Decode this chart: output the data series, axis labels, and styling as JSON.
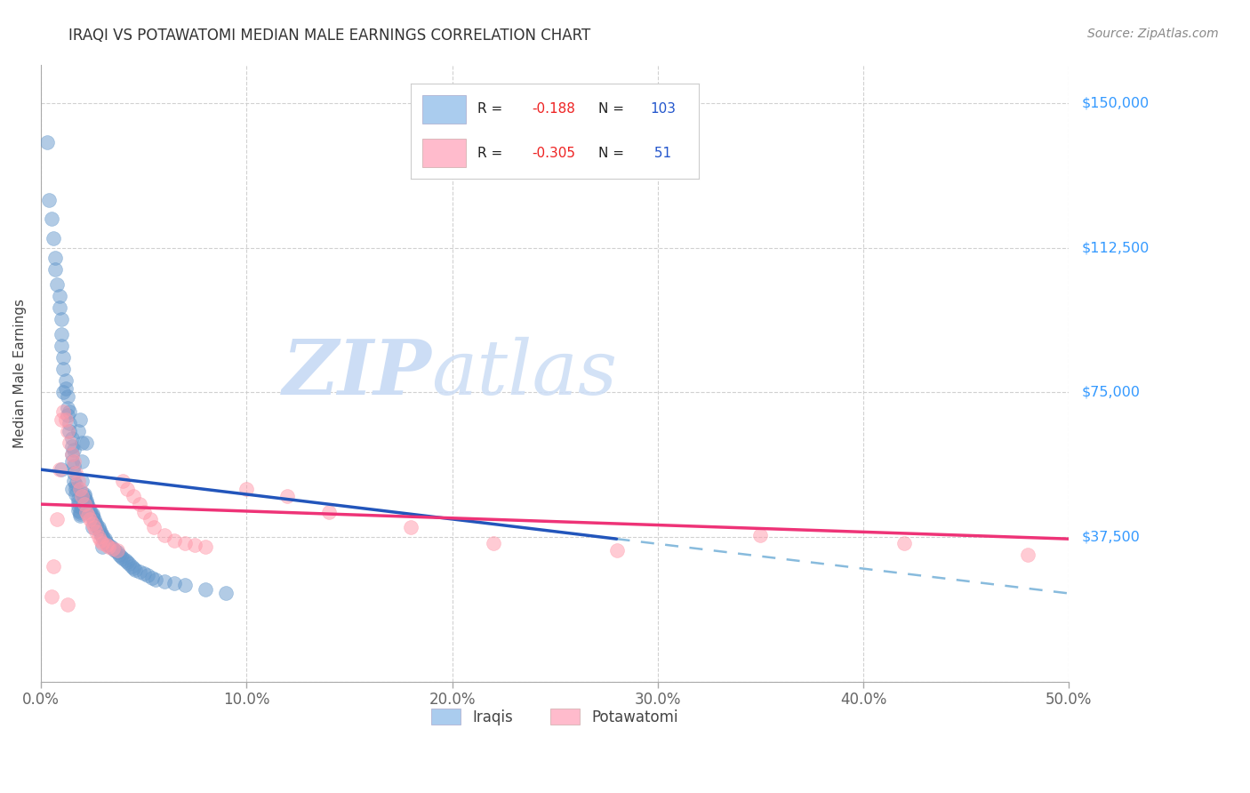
{
  "title": "IRAQI VS POTAWATOMI MEDIAN MALE EARNINGS CORRELATION CHART",
  "source": "Source: ZipAtlas.com",
  "ylabel": "Median Male Earnings",
  "yticks": [
    0,
    37500,
    75000,
    112500,
    150000
  ],
  "ytick_labels": [
    "",
    "$37,500",
    "$75,000",
    "$112,500",
    "$150,000"
  ],
  "xmin": 0.0,
  "xmax": 0.5,
  "ymin": 10000,
  "ymax": 160000,
  "iraqis_color": "#6699cc",
  "potawatomi_color": "#ff99aa",
  "iraqis_legend_color": "#aaccee",
  "potawatomi_legend_color": "#ffbbcc",
  "regression_blue": "#2255bb",
  "regression_pink": "#ee3377",
  "regression_dashed_color": "#88bbdd",
  "watermark_zip_color": "#ccddf5",
  "watermark_atlas_color": "#ccddf5",
  "iraqis_x": [
    0.003,
    0.004,
    0.005,
    0.006,
    0.007,
    0.007,
    0.008,
    0.009,
    0.009,
    0.01,
    0.01,
    0.01,
    0.011,
    0.011,
    0.012,
    0.012,
    0.013,
    0.013,
    0.013,
    0.014,
    0.014,
    0.015,
    0.015,
    0.015,
    0.015,
    0.016,
    0.016,
    0.016,
    0.017,
    0.017,
    0.017,
    0.018,
    0.018,
    0.018,
    0.018,
    0.019,
    0.019,
    0.019,
    0.02,
    0.02,
    0.02,
    0.02,
    0.021,
    0.021,
    0.021,
    0.022,
    0.022,
    0.022,
    0.023,
    0.023,
    0.024,
    0.024,
    0.025,
    0.025,
    0.025,
    0.026,
    0.026,
    0.027,
    0.027,
    0.028,
    0.028,
    0.029,
    0.029,
    0.03,
    0.03,
    0.031,
    0.031,
    0.032,
    0.033,
    0.034,
    0.035,
    0.036,
    0.037,
    0.038,
    0.039,
    0.04,
    0.041,
    0.042,
    0.043,
    0.044,
    0.045,
    0.046,
    0.048,
    0.05,
    0.052,
    0.054,
    0.056,
    0.06,
    0.065,
    0.07,
    0.08,
    0.09,
    0.01,
    0.015,
    0.02,
    0.025,
    0.03,
    0.014,
    0.018,
    0.016,
    0.011,
    0.019,
    0.022
  ],
  "iraqis_y": [
    140000,
    125000,
    120000,
    115000,
    110000,
    107000,
    103000,
    100000,
    97000,
    94000,
    90000,
    87000,
    84000,
    81000,
    78000,
    76000,
    74000,
    71000,
    69000,
    67000,
    65000,
    63000,
    61000,
    59000,
    57000,
    56000,
    54000,
    52000,
    51000,
    50000,
    48500,
    47500,
    46500,
    45500,
    44500,
    44000,
    43500,
    43000,
    62000,
    57000,
    52000,
    49000,
    48500,
    48000,
    47500,
    47000,
    46500,
    46000,
    45500,
    45000,
    44500,
    44000,
    43500,
    43000,
    42500,
    42000,
    41500,
    41000,
    40500,
    40000,
    39500,
    39000,
    38500,
    38000,
    37500,
    37000,
    36500,
    36000,
    35500,
    35000,
    34500,
    34000,
    33500,
    33000,
    32500,
    32000,
    31500,
    31000,
    30500,
    30000,
    29500,
    29000,
    28500,
    28000,
    27500,
    27000,
    26500,
    26000,
    25500,
    25000,
    24000,
    23000,
    55000,
    50000,
    45000,
    40000,
    35000,
    70000,
    65000,
    60000,
    75000,
    68000,
    62000
  ],
  "potawatomi_x": [
    0.005,
    0.006,
    0.008,
    0.009,
    0.01,
    0.011,
    0.012,
    0.013,
    0.014,
    0.015,
    0.016,
    0.017,
    0.018,
    0.019,
    0.02,
    0.021,
    0.022,
    0.023,
    0.024,
    0.025,
    0.026,
    0.027,
    0.028,
    0.029,
    0.03,
    0.032,
    0.033,
    0.035,
    0.037,
    0.04,
    0.042,
    0.045,
    0.048,
    0.05,
    0.053,
    0.055,
    0.06,
    0.065,
    0.07,
    0.075,
    0.08,
    0.1,
    0.12,
    0.14,
    0.18,
    0.22,
    0.28,
    0.35,
    0.42,
    0.48,
    0.013
  ],
  "potawatomi_y": [
    22000,
    30000,
    42000,
    55000,
    68000,
    70000,
    68000,
    65000,
    62000,
    59000,
    57000,
    54000,
    52000,
    50000,
    48000,
    46000,
    44000,
    43000,
    42000,
    41000,
    40000,
    39000,
    37500,
    36500,
    36000,
    35500,
    35000,
    34500,
    34000,
    52000,
    50000,
    48000,
    46000,
    44000,
    42000,
    40000,
    38000,
    36500,
    36000,
    35500,
    35000,
    50000,
    48000,
    44000,
    40000,
    36000,
    34000,
    38000,
    36000,
    33000,
    20000
  ]
}
